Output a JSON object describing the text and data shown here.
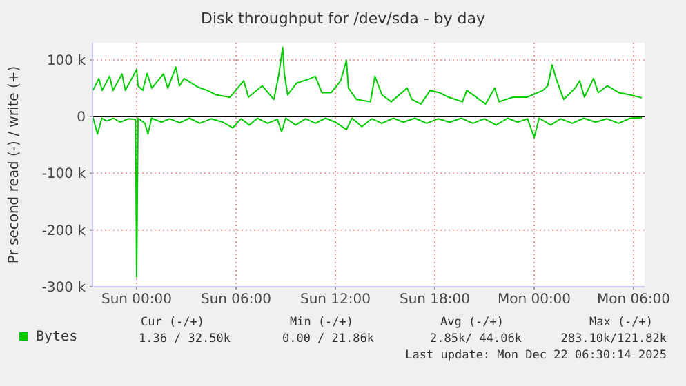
{
  "chart_data": {
    "type": "line",
    "title": "Disk throughput for /dev/sda - by day",
    "ylabel": "Pr second read (-) / write (+)",
    "xlim": [
      "2025-12-20T21:20",
      "2025-12-22T06:40"
    ],
    "xticks": [
      {
        "value": "2025-12-21T00:00",
        "label": "Sun 00:00"
      },
      {
        "value": "2025-12-21T06:00",
        "label": "Sun 06:00"
      },
      {
        "value": "2025-12-21T12:00",
        "label": "Sun 12:00"
      },
      {
        "value": "2025-12-21T18:00",
        "label": "Sun 18:00"
      },
      {
        "value": "2025-12-22T00:00",
        "label": "Mon 00:00"
      },
      {
        "value": "2025-12-22T06:00",
        "label": "Mon 06:00"
      }
    ],
    "ylim": [
      -300000,
      130000
    ],
    "yticks": [
      {
        "value": -300000,
        "label": "-300 k"
      },
      {
        "value": -200000,
        "label": "-200 k"
      },
      {
        "value": -100000,
        "label": "-100 k"
      },
      0,
      {
        "value": 100000,
        "label": "100 k"
      }
    ],
    "grid": true,
    "legend": "bottom left",
    "ref_lines": [
      {
        "axis": "y",
        "value": 0,
        "color": "#000000"
      }
    ],
    "series": [
      {
        "name": "Bytes",
        "color": "#00cc00",
        "x": [
          "2025-12-20T21:22",
          "2025-12-20T21:43",
          "2025-12-20T21:55",
          "2025-12-20T22:22",
          "2025-12-20T22:34",
          "2025-12-20T23:07",
          "2025-12-20T23:19",
          "2025-12-21T00:00",
          "2025-12-21T00:05",
          "2025-12-21T00:22",
          "2025-12-21T00:38",
          "2025-12-21T00:55",
          "2025-12-21T01:37",
          "2025-12-21T01:53",
          "2025-12-21T02:22",
          "2025-12-21T02:35",
          "2025-12-21T02:52",
          "2025-12-21T03:41",
          "2025-12-21T04:15",
          "2025-12-21T04:49",
          "2025-12-21T05:38",
          "2025-12-21T06:28",
          "2025-12-21T06:45",
          "2025-12-21T07:35",
          "2025-12-21T08:17",
          "2025-12-21T08:34",
          "2025-12-21T08:49",
          "2025-12-21T08:55",
          "2025-12-21T09:07",
          "2025-12-21T09:40",
          "2025-12-21T10:30",
          "2025-12-21T10:47",
          "2025-12-21T11:11",
          "2025-12-21T11:45",
          "2025-12-21T12:19",
          "2025-12-21T12:40",
          "2025-12-21T12:47",
          "2025-12-21T13:17",
          "2025-12-21T14:07",
          "2025-12-21T14:23",
          "2025-12-21T14:49",
          "2025-12-21T15:22",
          "2025-12-21T16:20",
          "2025-12-21T16:37",
          "2025-12-21T17:10",
          "2025-12-21T17:43",
          "2025-12-21T18:17",
          "2025-12-21T18:50",
          "2025-12-21T19:40",
          "2025-12-21T19:56",
          "2025-12-21T21:04",
          "2025-12-21T21:37",
          "2025-12-21T21:53",
          "2025-12-21T22:43",
          "2025-12-21T23:34",
          "2025-12-22T00:32",
          "2025-12-22T00:49",
          "2025-12-22T01:05",
          "2025-12-22T01:22",
          "2025-12-22T01:47",
          "2025-12-22T02:28",
          "2025-12-22T02:45",
          "2025-12-22T03:02",
          "2025-12-22T03:35",
          "2025-12-22T03:52",
          "2025-12-22T04:25",
          "2025-12-22T05:07",
          "2025-12-22T05:49",
          "2025-12-22T06:30"
        ],
        "values": [
          46000,
          67000,
          46000,
          71000,
          46000,
          75000,
          46000,
          83000,
          54000,
          46000,
          76000,
          50000,
          75000,
          50000,
          87000,
          54000,
          67000,
          52000,
          46000,
          38000,
          34000,
          63000,
          34000,
          54000,
          30000,
          71000,
          122000,
          75000,
          38000,
          59000,
          67000,
          71000,
          42000,
          42000,
          63000,
          99000,
          50000,
          30000,
          26000,
          71000,
          38000,
          26000,
          50000,
          30000,
          22000,
          46000,
          42000,
          34000,
          26000,
          46000,
          22000,
          50000,
          26000,
          34000,
          34000,
          46000,
          54000,
          91000,
          63000,
          30000,
          50000,
          63000,
          34000,
          67000,
          42000,
          54000,
          42000,
          38000,
          33000
        ]
      },
      {
        "color": "#00cc00",
        "x": [
          "2025-12-20T21:22",
          "2025-12-20T21:38",
          "2025-12-20T21:54",
          "2025-12-20T22:12",
          "2025-12-20T22:36",
          "2025-12-20T23:00",
          "2025-12-20T23:30",
          "2025-12-20T23:56",
          "2025-12-21T00:00",
          "2025-12-21T00:05",
          "2025-12-21T00:30",
          "2025-12-21T00:41",
          "2025-12-21T00:54",
          "2025-12-21T01:30",
          "2025-12-21T02:00",
          "2025-12-21T02:36",
          "2025-12-21T03:12",
          "2025-12-21T03:48",
          "2025-12-21T04:30",
          "2025-12-21T05:12",
          "2025-12-21T05:48",
          "2025-12-21T06:18",
          "2025-12-21T06:48",
          "2025-12-21T07:18",
          "2025-12-21T07:54",
          "2025-12-21T08:30",
          "2025-12-21T08:45",
          "2025-12-21T09:00",
          "2025-12-21T09:36",
          "2025-12-21T10:12",
          "2025-12-21T10:48",
          "2025-12-21T11:24",
          "2025-12-21T12:00",
          "2025-12-21T12:40",
          "2025-12-21T13:00",
          "2025-12-21T13:36",
          "2025-12-21T14:12",
          "2025-12-21T14:48",
          "2025-12-21T15:30",
          "2025-12-21T16:06",
          "2025-12-21T16:48",
          "2025-12-21T17:30",
          "2025-12-21T18:12",
          "2025-12-21T18:54",
          "2025-12-21T19:36",
          "2025-12-21T20:18",
          "2025-12-21T21:00",
          "2025-12-21T21:42",
          "2025-12-21T22:24",
          "2025-12-21T23:00",
          "2025-12-21T23:36",
          "2025-12-22T00:00",
          "2025-12-22T00:18",
          "2025-12-22T01:00",
          "2025-12-22T01:36",
          "2025-12-22T02:18",
          "2025-12-22T03:00",
          "2025-12-22T03:42",
          "2025-12-22T04:24",
          "2025-12-22T05:06",
          "2025-12-22T05:48",
          "2025-12-22T06:30"
        ],
        "values": [
          -2000,
          -31000,
          -3000,
          -8000,
          -3000,
          -10000,
          -4000,
          -5000,
          -283000,
          -3000,
          -12000,
          -31000,
          -3000,
          -10000,
          -4000,
          -11000,
          -3000,
          -12000,
          -4000,
          -10000,
          -20000,
          -4000,
          -15000,
          -3000,
          -12000,
          -5000,
          -27000,
          -3000,
          -15000,
          -4000,
          -12000,
          -3000,
          -10000,
          -23000,
          -3000,
          -18000,
          -4000,
          -12000,
          -3000,
          -10000,
          -3000,
          -12000,
          -4000,
          -10000,
          -3000,
          -12000,
          -4000,
          -15000,
          -3000,
          -10000,
          -4000,
          -37000,
          -3000,
          -15000,
          -4000,
          -12000,
          -3000,
          -10000,
          -4000,
          -12000,
          -3000,
          -2000
        ]
      }
    ],
    "annotations": [
      "Cur (-/+)",
      "Min (-/+)",
      "Avg (-/+)",
      "Max (-/+)",
      "1.36 / 32.50k",
      "0.00 / 21.86k",
      "2.85k/ 44.06k",
      "283.10k/121.82k",
      "Last update: Mon Dec 22 06:30:14 2025"
    ]
  }
}
